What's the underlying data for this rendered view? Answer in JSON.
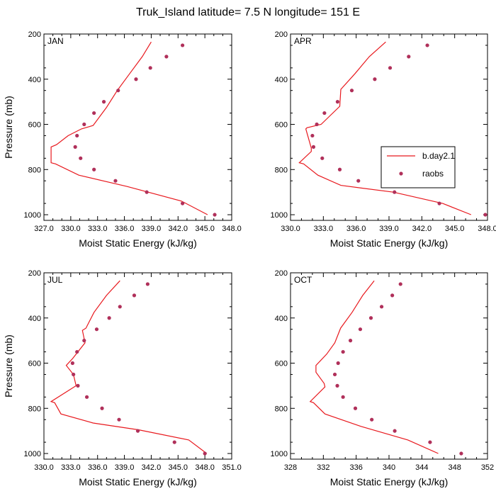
{
  "title": "Truk_Island  latitude= 7.5 N longitude= 151 E",
  "colors": {
    "model": "#e8191e",
    "obs": "#b0305a",
    "axis": "#000000"
  },
  "legend": {
    "model_label": "b.day2.1",
    "obs_label": "raobs"
  },
  "chart_data": [
    {
      "type": "line",
      "panel": "JAN",
      "xlabel": "Moist Static Energy (kJ/kg)",
      "ylabel": "Pressure (mb)",
      "xlim": [
        327,
        348
      ],
      "ylim": [
        200,
        1025
      ],
      "y_inverted": true,
      "xticks": [
        327,
        330,
        333,
        336,
        339,
        342,
        345,
        348
      ],
      "xtick_labels": [
        "327.0",
        "330.0",
        "333.0",
        "336.0",
        "339.0",
        "342.0",
        "345.0",
        "348.0"
      ],
      "yticks": [
        200,
        400,
        600,
        800,
        1000
      ],
      "ytick_labels": [
        "200",
        "400",
        "600",
        "800",
        "1000"
      ],
      "series": [
        {
          "name": "b.day2.1",
          "kind": "line",
          "x": [
            339.0,
            338.0,
            336.6,
            335.2,
            334.0,
            332.5,
            331.2,
            329.7,
            328.4,
            327.8,
            327.8,
            328.3,
            330.9,
            336.3,
            342.4,
            345.3
          ],
          "y": [
            235,
            300,
            375,
            450,
            525,
            605,
            620,
            650,
            690,
            700,
            770,
            775,
            825,
            875,
            940,
            1000
          ]
        },
        {
          "name": "raobs",
          "kind": "scatter",
          "x": [
            342.5,
            340.7,
            338.9,
            337.3,
            335.3,
            333.7,
            332.6,
            331.5,
            330.7,
            330.5,
            331.1,
            332.6,
            335.0,
            338.5,
            342.5,
            346.1
          ],
          "y": [
            250,
            300,
            350,
            400,
            450,
            500,
            550,
            600,
            650,
            700,
            750,
            800,
            850,
            900,
            950,
            1000
          ]
        }
      ]
    },
    {
      "type": "line",
      "panel": "APR",
      "xlabel": "Moist Static Energy (kJ/kg)",
      "ylabel": "",
      "xlim": [
        330,
        348
      ],
      "ylim": [
        200,
        1025
      ],
      "y_inverted": true,
      "xticks": [
        330,
        333,
        336,
        339,
        342,
        345,
        348
      ],
      "xtick_labels": [
        "330.0",
        "333.0",
        "336.0",
        "339.0",
        "342.0",
        "345.0",
        "348.0"
      ],
      "yticks": [
        200,
        400,
        600,
        800,
        1000
      ],
      "ytick_labels": [
        "200",
        "400",
        "600",
        "800",
        "1000"
      ],
      "series": [
        {
          "name": "b.day2.1",
          "kind": "line",
          "x": [
            338.7,
            337.2,
            335.9,
            334.6,
            334.5,
            332.8,
            331.5,
            331.4,
            331.9,
            331.9,
            330.8,
            331.2,
            332.5,
            334.6,
            339.4,
            343.9,
            346.5
          ],
          "y": [
            235,
            300,
            375,
            445,
            520,
            600,
            615,
            620,
            705,
            720,
            770,
            775,
            825,
            870,
            900,
            950,
            1000
          ]
        },
        {
          "name": "raobs",
          "kind": "scatter",
          "x": [
            342.5,
            340.8,
            339.1,
            337.7,
            335.6,
            334.3,
            333.1,
            332.4,
            332.0,
            332.1,
            332.9,
            334.5,
            336.2,
            339.5,
            343.6,
            347.8
          ],
          "y": [
            250,
            300,
            350,
            400,
            450,
            500,
            550,
            600,
            650,
            700,
            750,
            800,
            850,
            900,
            950,
            1000
          ]
        }
      ]
    },
    {
      "type": "line",
      "panel": "JUL",
      "xlabel": "Moist Static Energy (kJ/kg)",
      "ylabel": "Pressure (mb)",
      "xlim": [
        330,
        351
      ],
      "ylim": [
        200,
        1025
      ],
      "y_inverted": true,
      "xticks": [
        330,
        333,
        336,
        339,
        342,
        345,
        348,
        351
      ],
      "xtick_labels": [
        "330.0",
        "333.0",
        "336.0",
        "339.0",
        "342.0",
        "345.0",
        "348.0",
        "351.0"
      ],
      "yticks": [
        200,
        400,
        600,
        800,
        1000
      ],
      "ytick_labels": [
        "200",
        "400",
        "600",
        "800",
        "1000"
      ],
      "series": [
        {
          "name": "b.day2.1",
          "kind": "line",
          "x": [
            338.5,
            337.0,
            335.6,
            334.7,
            334.3,
            334.6,
            333.2,
            332.5,
            333.3,
            333.6,
            330.8,
            331.2,
            331.9,
            335.5,
            340.6,
            346.2,
            348.2
          ],
          "y": [
            235,
            300,
            375,
            445,
            455,
            510,
            580,
            610,
            650,
            700,
            770,
            775,
            825,
            865,
            895,
            940,
            1000
          ]
        },
        {
          "name": "raobs",
          "kind": "scatter",
          "x": [
            341.6,
            340.1,
            338.5,
            337.3,
            335.9,
            334.5,
            333.7,
            333.2,
            333.3,
            333.8,
            334.8,
            336.5,
            338.4,
            340.5,
            344.6,
            348.0
          ],
          "y": [
            250,
            300,
            350,
            400,
            450,
            500,
            550,
            600,
            650,
            700,
            750,
            800,
            850,
            900,
            950,
            1000
          ]
        }
      ]
    },
    {
      "type": "line",
      "panel": "OCT",
      "xlabel": "Moist Static Energy (kJ/kg)",
      "ylabel": "",
      "xlim": [
        328,
        352
      ],
      "ylim": [
        200,
        1025
      ],
      "y_inverted": true,
      "xticks": [
        328,
        332,
        336,
        340,
        344,
        348,
        352
      ],
      "xtick_labels": [
        "328",
        "332",
        "336",
        "340",
        "344",
        "348",
        "352"
      ],
      "yticks": [
        200,
        400,
        600,
        800,
        1000
      ],
      "ytick_labels": [
        "200",
        "400",
        "600",
        "800",
        "1000"
      ],
      "series": [
        {
          "name": "b.day2.1",
          "kind": "line",
          "x": [
            338.2,
            336.8,
            335.5,
            334.1,
            333.4,
            332.4,
            331.1,
            331.1,
            332.1,
            332.2,
            330.4,
            330.8,
            332.2,
            336.6,
            342.3,
            346.0
          ],
          "y": [
            235,
            300,
            375,
            445,
            510,
            560,
            610,
            640,
            690,
            705,
            770,
            775,
            825,
            880,
            940,
            1000
          ]
        },
        {
          "name": "raobs",
          "kind": "scatter",
          "x": [
            341.4,
            340.4,
            339.1,
            337.8,
            336.5,
            335.3,
            334.4,
            333.8,
            333.4,
            333.7,
            334.4,
            335.9,
            337.9,
            340.7,
            345.0,
            348.8
          ],
          "y": [
            250,
            300,
            350,
            400,
            450,
            500,
            550,
            600,
            650,
            700,
            750,
            800,
            850,
            900,
            950,
            1000
          ]
        }
      ]
    }
  ]
}
